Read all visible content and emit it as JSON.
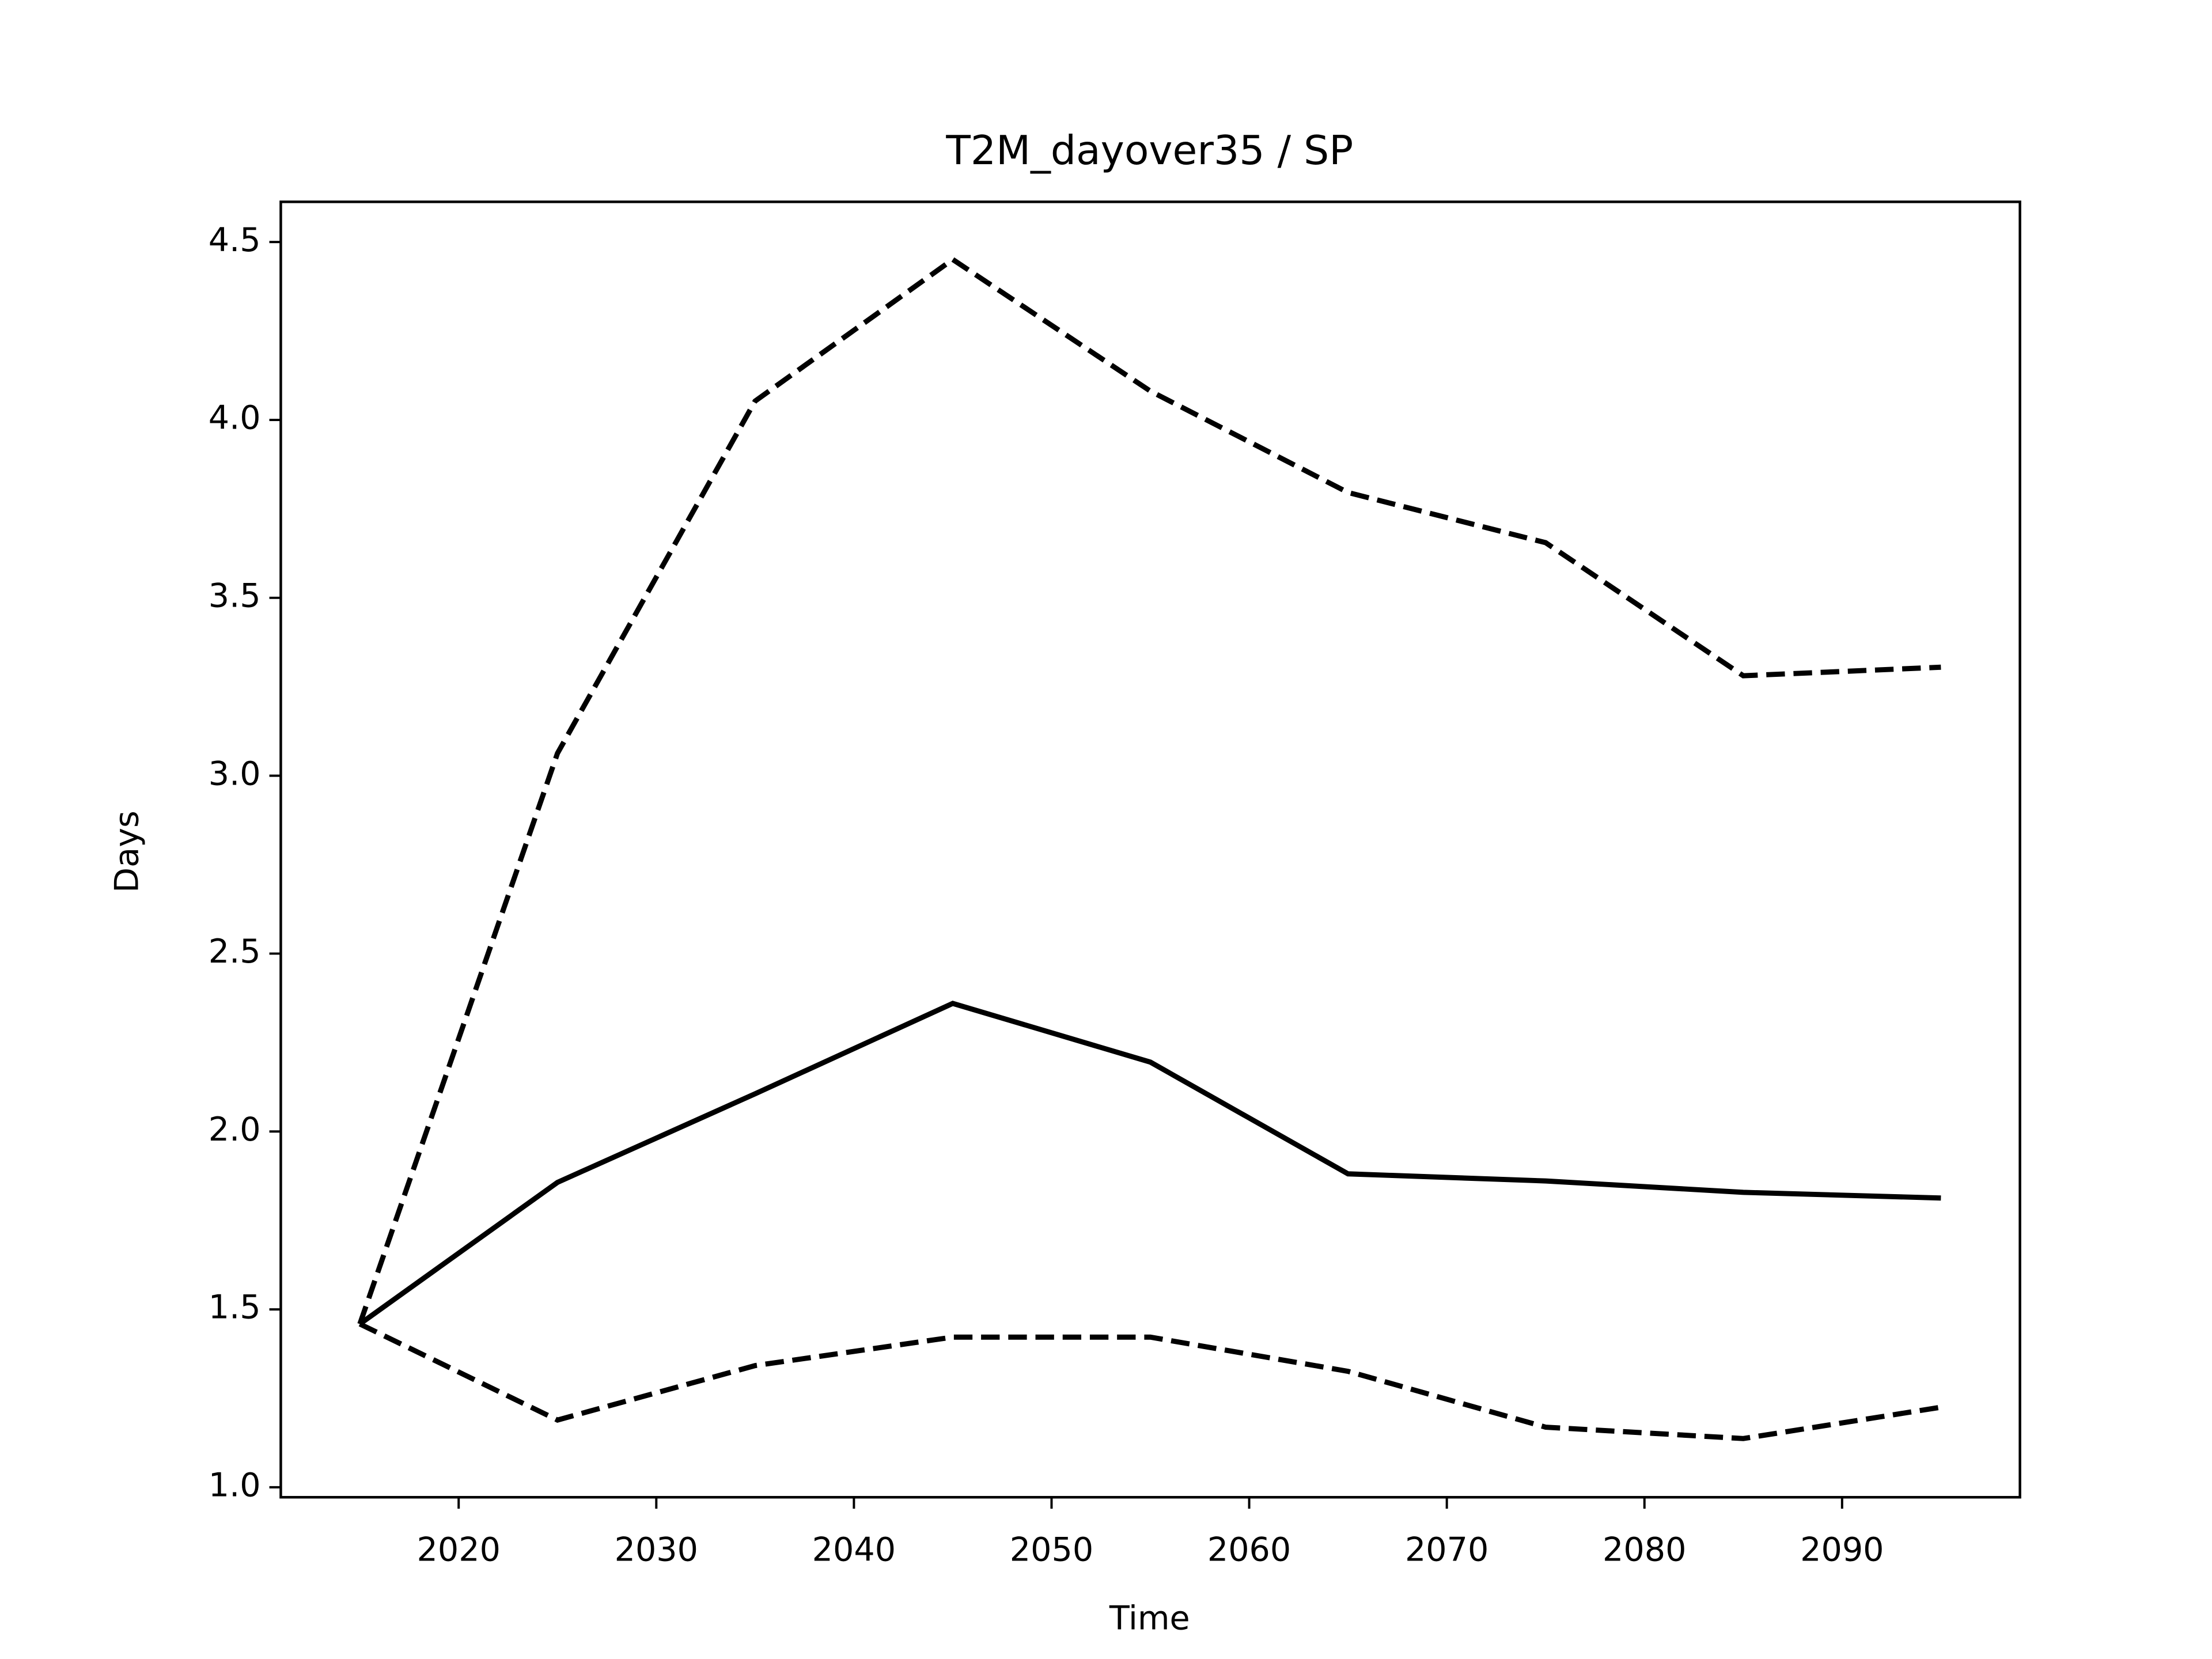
{
  "chart_data": {
    "type": "line",
    "title": "T2M_dayover35 / SP",
    "x_label": "Time",
    "y_label": "Days",
    "x": [
      2015,
      2025,
      2035,
      2045,
      2055,
      2065,
      2075,
      2085,
      2095
    ],
    "series": [
      {
        "color": "#000000",
        "dashed": false,
        "values": [
          1.459,
          1.857,
          2.106,
          2.36,
          2.195,
          1.881,
          1.861,
          1.829,
          1.813
        ]
      },
      {
        "color": "#000000",
        "dashed": true,
        "values": [
          1.459,
          3.063,
          4.053,
          4.451,
          4.081,
          3.796,
          3.655,
          3.281,
          3.305
        ]
      },
      {
        "color": "#000000",
        "dashed": true,
        "values": [
          1.459,
          1.189,
          1.342,
          1.422,
          1.422,
          1.326,
          1.169,
          1.137,
          1.225
        ]
      }
    ],
    "xlim": [
      2011,
      2099
    ],
    "ylim": [
      0.972,
      4.613
    ],
    "xticks": [
      2020,
      2030,
      2040,
      2050,
      2060,
      2070,
      2080,
      2090
    ],
    "yticks": [
      {
        "value": 1,
        "label": "1.0"
      },
      1.5,
      {
        "value": 2,
        "label": "2.0"
      },
      2.5,
      {
        "value": 3,
        "label": "3.0"
      },
      3.5,
      {
        "value": 4,
        "label": "4.0"
      },
      4.5
    ],
    "grid": false
  }
}
